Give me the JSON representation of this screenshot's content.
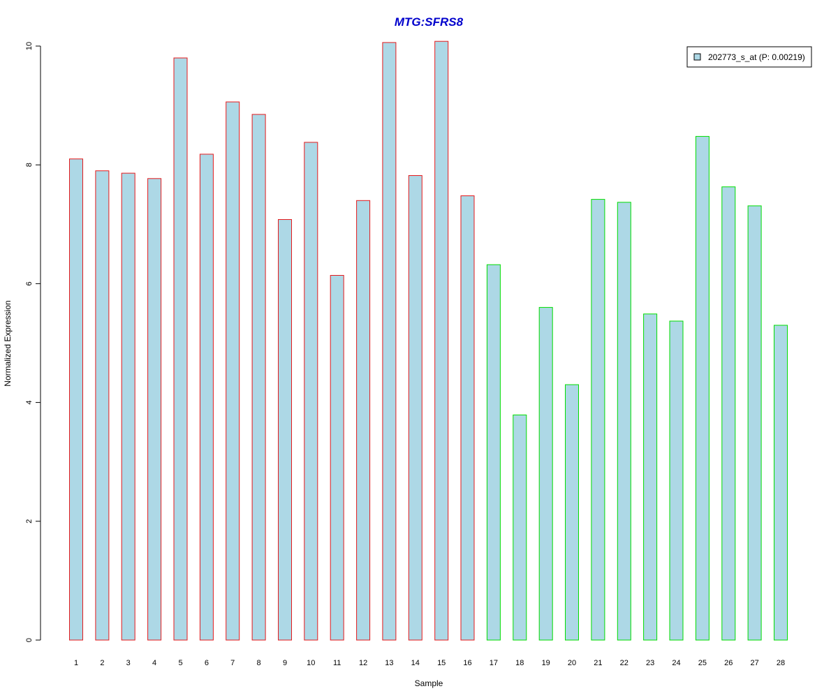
{
  "chart_data": {
    "type": "bar",
    "title": "MTG:SFRS8",
    "xlabel": "Sample",
    "ylabel": "Normalized Expression",
    "ylim": [
      0,
      10
    ],
    "yticks": [
      "0",
      "2",
      "4",
      "6",
      "8",
      "10"
    ],
    "grid": false,
    "legend_position": "top-right",
    "categories": [
      "1",
      "2",
      "3",
      "4",
      "5",
      "6",
      "7",
      "8",
      "9",
      "10",
      "11",
      "12",
      "13",
      "14",
      "15",
      "16",
      "17",
      "18",
      "19",
      "20",
      "21",
      "22",
      "23",
      "24",
      "25",
      "26",
      "27",
      "28"
    ],
    "series": [
      {
        "name": "202773_s_at (P: 0.00219)",
        "values": [
          8.1,
          7.9,
          7.86,
          7.77,
          9.8,
          8.18,
          9.06,
          8.85,
          7.08,
          8.38,
          6.14,
          7.4,
          10.06,
          7.82,
          10.08,
          7.48,
          6.32,
          3.79,
          5.6,
          4.3,
          7.42,
          7.37,
          5.49,
          5.37,
          8.48,
          7.63,
          7.31,
          5.3
        ]
      }
    ],
    "group_split_after": 16,
    "colors": {
      "fill": "#add8e6",
      "group1_border": "#e41a1c",
      "group2_border": "#00dd00",
      "title": "#0000cc",
      "axis": "#000000"
    }
  }
}
